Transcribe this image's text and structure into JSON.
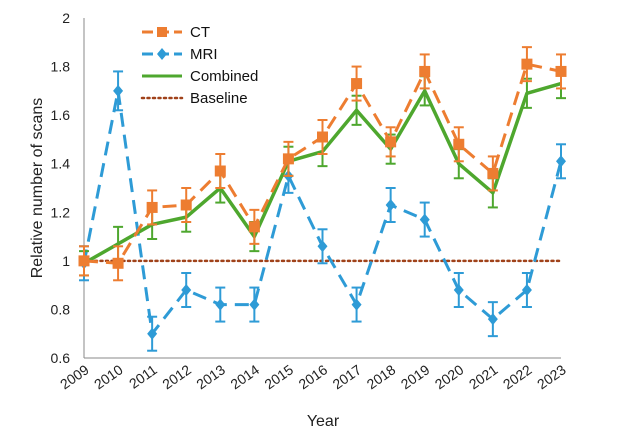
{
  "chart_data": {
    "type": "line",
    "xlabel": "Year",
    "ylabel": "Relative number of scans",
    "ylim": [
      0.6,
      2
    ],
    "yticks": [
      "0.6",
      "0.8",
      "1",
      "1.2",
      "1.4",
      "1.6",
      "1.8",
      "2"
    ],
    "categories": [
      "2009",
      "2010",
      "2011",
      "2012",
      "2013",
      "2014",
      "2015",
      "2016",
      "2017",
      "2018",
      "2019",
      "2020",
      "2021",
      "2022",
      "2023"
    ],
    "grid": false,
    "legend_position": "top-left",
    "series": [
      {
        "name": "CT",
        "color": "#ED7D31",
        "style": "dashed",
        "marker": "square",
        "values": [
          1.0,
          0.99,
          1.22,
          1.23,
          1.37,
          1.14,
          1.42,
          1.51,
          1.73,
          1.49,
          1.78,
          1.48,
          1.36,
          1.81,
          1.78
        ],
        "errors": [
          0.06,
          0.07,
          0.07,
          0.07,
          0.07,
          0.07,
          0.07,
          0.07,
          0.07,
          0.06,
          0.07,
          0.07,
          0.07,
          0.07,
          0.07
        ]
      },
      {
        "name": "MRI",
        "color": "#2E9BD6",
        "style": "dashed",
        "marker": "diamond",
        "values": [
          0.99,
          1.7,
          0.7,
          0.88,
          0.82,
          0.82,
          1.35,
          1.06,
          0.82,
          1.23,
          1.17,
          0.88,
          0.76,
          0.88,
          1.41
        ],
        "errors": [
          0.07,
          0.08,
          0.07,
          0.07,
          0.07,
          0.07,
          0.07,
          0.07,
          0.07,
          0.07,
          0.07,
          0.07,
          0.07,
          0.07,
          0.07
        ]
      },
      {
        "name": "Combined",
        "color": "#4EA72E",
        "style": "solid",
        "marker": "none",
        "values": [
          0.99,
          1.07,
          1.15,
          1.18,
          1.3,
          1.1,
          1.41,
          1.45,
          1.62,
          1.46,
          1.7,
          1.4,
          1.28,
          1.69,
          1.73
        ],
        "errors": [
          0.05,
          0.07,
          0.06,
          0.06,
          0.06,
          0.06,
          0.06,
          0.06,
          0.06,
          0.06,
          0.06,
          0.06,
          0.06,
          0.06,
          0.06
        ]
      },
      {
        "name": "Baseline",
        "color": "#A0421A",
        "style": "dotted",
        "marker": "none",
        "values": [
          1,
          1,
          1,
          1,
          1,
          1,
          1,
          1,
          1,
          1,
          1,
          1,
          1,
          1,
          1
        ]
      }
    ]
  }
}
